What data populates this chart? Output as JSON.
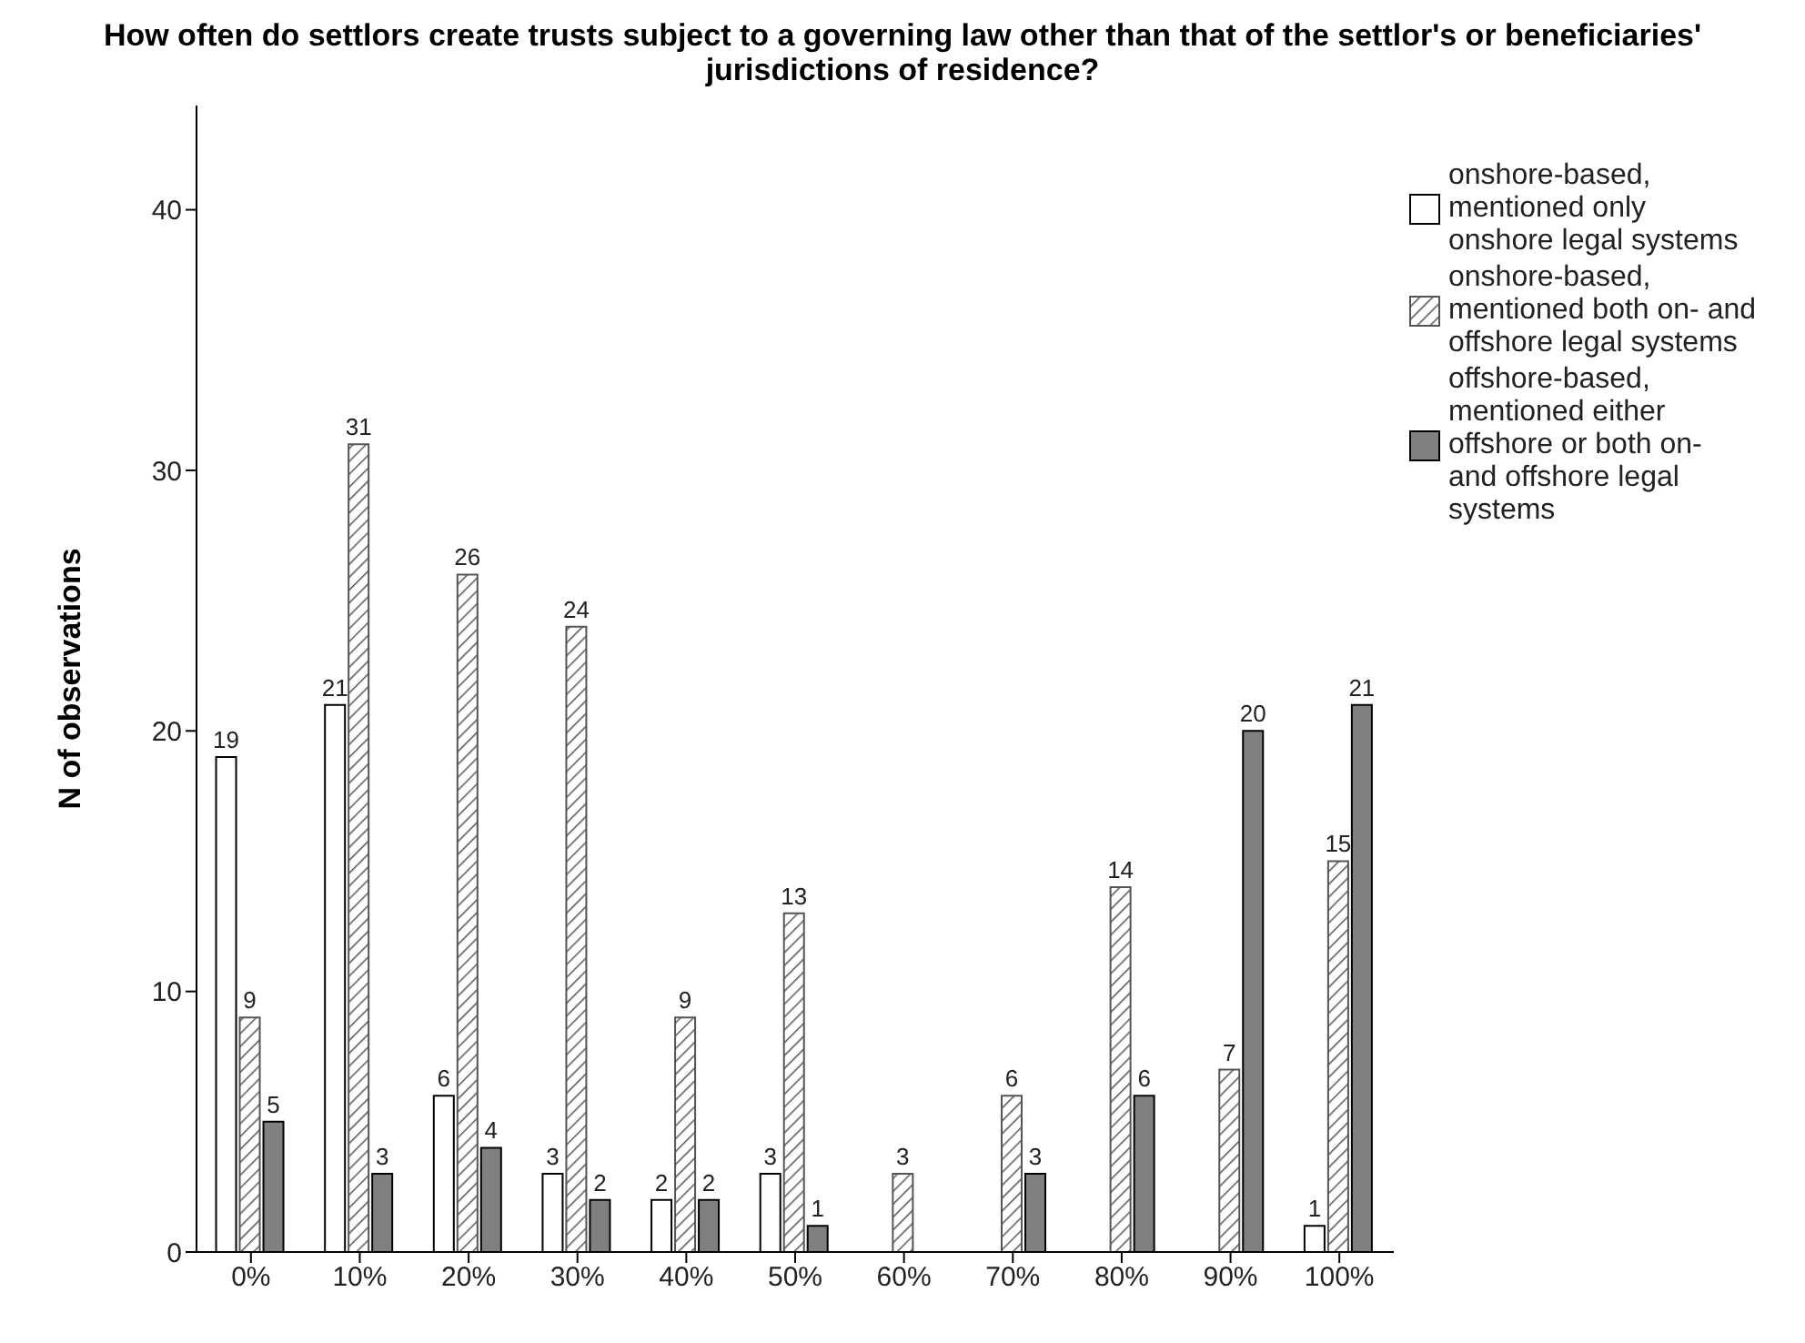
{
  "chart_data": {
    "type": "bar",
    "title": "How often do settlors create trusts subject to a governing law other than that of the settlor's or beneficiaries' jurisdictions of residence?",
    "ylabel": "N of observations",
    "categories": [
      "0%",
      "10%",
      "20%",
      "30%",
      "40%",
      "50%",
      "60%",
      "70%",
      "80%",
      "90%",
      "100%"
    ],
    "series": [
      {
        "name": "onshore-based, mentioned only onshore legal systems",
        "color": "#ffffff",
        "values": [
          19,
          21,
          6,
          3,
          2,
          3,
          null,
          null,
          null,
          null,
          1
        ]
      },
      {
        "name": "onshore-based, mentioned both on- and offshore legal systems",
        "color": "#555555",
        "values": [
          9,
          31,
          26,
          24,
          9,
          13,
          3,
          6,
          14,
          7,
          15
        ]
      },
      {
        "name": "offshore-based, mentioned either offshore or both on- and offshore legal systems",
        "color": "#808080",
        "values": [
          5,
          3,
          4,
          2,
          2,
          1,
          null,
          3,
          6,
          20,
          21
        ]
      }
    ],
    "ylim": [
      0,
      44
    ],
    "yticks": [
      0,
      10,
      20,
      30,
      40
    ],
    "grid": false,
    "legend": "right",
    "data_labels": true
  }
}
